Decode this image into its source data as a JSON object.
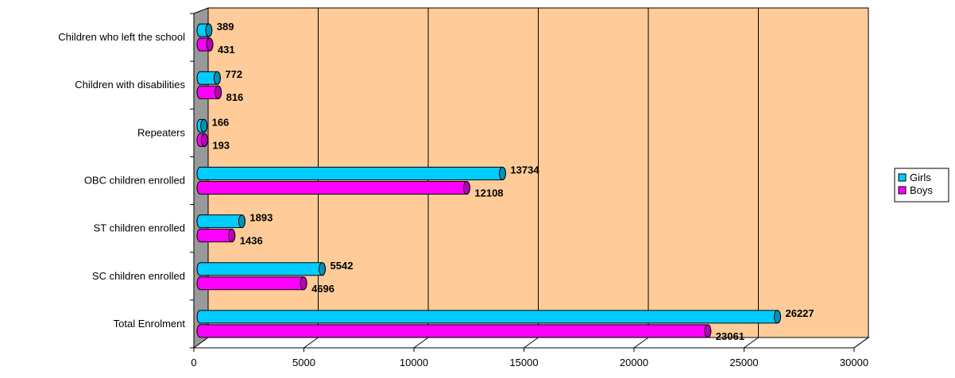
{
  "chart_data": {
    "type": "bar",
    "orientation": "horizontal",
    "style": "3d-cylinder",
    "categories": [
      "Total Enrolment",
      "SC children enrolled",
      "ST children enrolled",
      "OBC children enrolled",
      "Repeaters",
      "Children with disabilities",
      "Children who left the school"
    ],
    "series": [
      {
        "name": "Girls",
        "color": "#00ccff",
        "values": [
          26227,
          5542,
          1893,
          13734,
          166,
          772,
          389
        ]
      },
      {
        "name": "Boys",
        "color": "#ff00ff",
        "values": [
          23061,
          4696,
          1436,
          12108,
          193,
          816,
          431
        ]
      }
    ],
    "xlim": [
      0,
      30000
    ],
    "x_ticks": [
      "0",
      "5000",
      "10000",
      "15000",
      "20000",
      "25000",
      "30000"
    ],
    "grid": true,
    "legend_position": "right",
    "plot_background": "#ffcc99",
    "wall_color": "#999999"
  }
}
